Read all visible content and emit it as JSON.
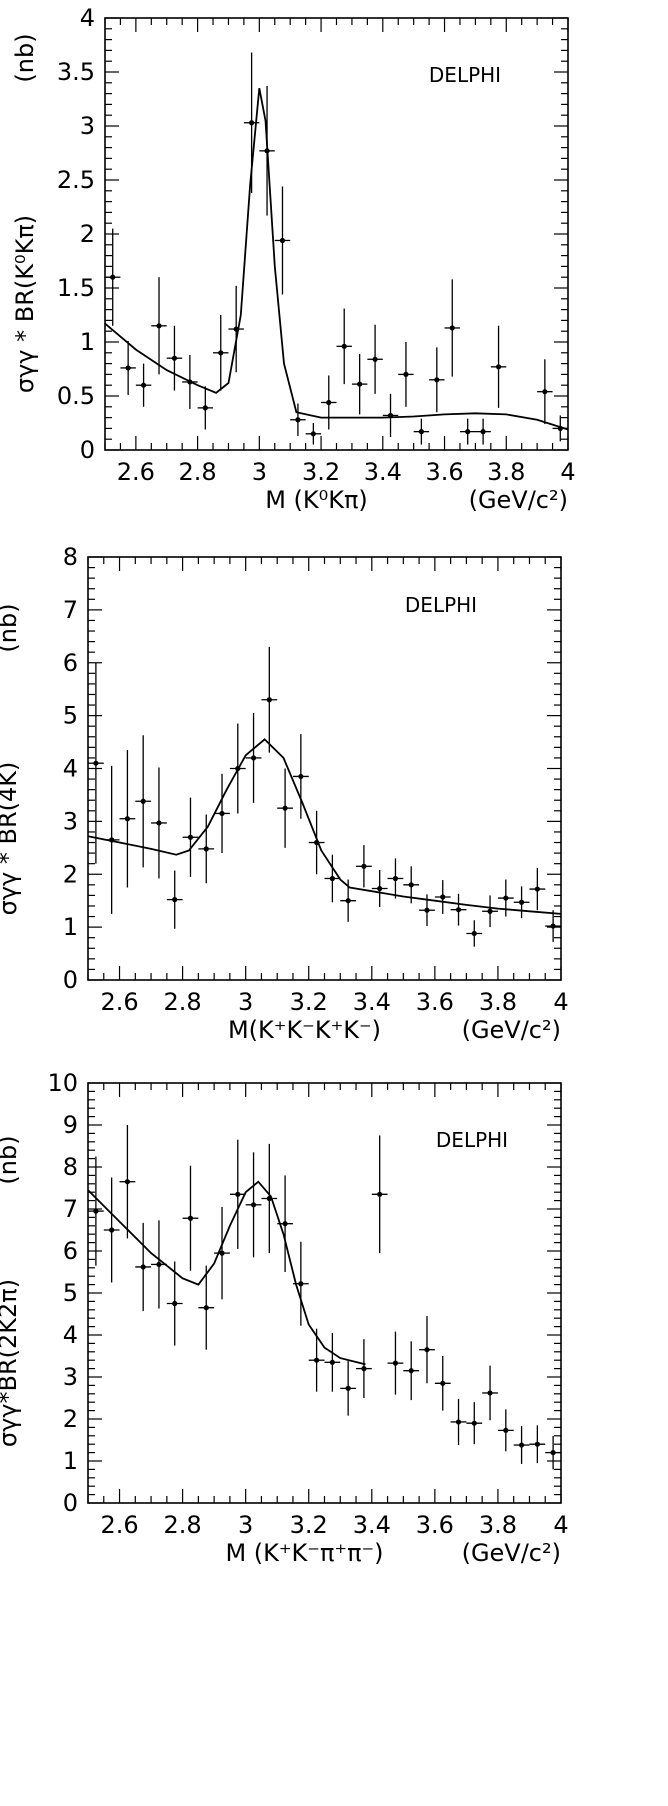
{
  "chart_data": [
    {
      "type": "scatter",
      "tag": "DELPHI",
      "ylabel_text": "σγγ * BR(K⁰Kπ)",
      "y_unit": "(nb)",
      "xlabel": "M (K⁰Kπ)",
      "x_unit": "(GeV/c²)",
      "xlim": [
        2.5,
        4.0
      ],
      "ylim": [
        0,
        4
      ],
      "xticks": [
        2.6,
        2.8,
        3.0,
        3.2,
        3.4,
        3.6,
        3.8,
        4.0
      ],
      "xtick_labels": [
        "2.6",
        "2.8",
        "3",
        "3.2",
        "3.4",
        "3.6",
        "3.8",
        "4"
      ],
      "yticks": [
        0,
        0.5,
        1,
        1.5,
        2,
        2.5,
        3,
        3.5,
        4
      ],
      "ytick_labels": [
        "0",
        "0.5",
        "1",
        "1.5",
        "2",
        "2.5",
        "3",
        "3.5",
        "4"
      ],
      "points": [
        {
          "x": 2.525,
          "y": 1.6,
          "err": 0.45
        },
        {
          "x": 2.575,
          "y": 0.76,
          "err": 0.25
        },
        {
          "x": 2.625,
          "y": 0.6,
          "err": 0.2
        },
        {
          "x": 2.675,
          "y": 1.15,
          "err": 0.45
        },
        {
          "x": 2.725,
          "y": 0.85,
          "err": 0.3
        },
        {
          "x": 2.775,
          "y": 0.63,
          "err": 0.25
        },
        {
          "x": 2.825,
          "y": 0.39,
          "err": 0.2
        },
        {
          "x": 2.875,
          "y": 0.9,
          "err": 0.35
        },
        {
          "x": 2.925,
          "y": 1.12,
          "err": 0.4
        },
        {
          "x": 2.975,
          "y": 3.03,
          "err": 0.65
        },
        {
          "x": 3.025,
          "y": 2.77,
          "err": 0.6
        },
        {
          "x": 3.075,
          "y": 1.94,
          "err": 0.5
        },
        {
          "x": 3.125,
          "y": 0.28,
          "err": 0.15
        },
        {
          "x": 3.175,
          "y": 0.15,
          "err": 0.1
        },
        {
          "x": 3.225,
          "y": 0.44,
          "err": 0.25
        },
        {
          "x": 3.275,
          "y": 0.96,
          "err": 0.35
        },
        {
          "x": 3.325,
          "y": 0.61,
          "err": 0.28
        },
        {
          "x": 3.375,
          "y": 0.84,
          "err": 0.32
        },
        {
          "x": 3.425,
          "y": 0.32,
          "err": 0.2
        },
        {
          "x": 3.475,
          "y": 0.7,
          "err": 0.3
        },
        {
          "x": 3.525,
          "y": 0.17,
          "err": 0.12
        },
        {
          "x": 3.575,
          "y": 0.65,
          "err": 0.3
        },
        {
          "x": 3.625,
          "y": 1.13,
          "err": 0.45
        },
        {
          "x": 3.675,
          "y": 0.17,
          "err": 0.12
        },
        {
          "x": 3.725,
          "y": 0.17,
          "err": 0.12
        },
        {
          "x": 3.775,
          "y": 0.77,
          "err": 0.38
        },
        {
          "x": 3.925,
          "y": 0.54,
          "err": 0.3
        },
        {
          "x": 3.975,
          "y": 0.2,
          "err": 0.12
        }
      ],
      "fit": [
        [
          2.5,
          1.17
        ],
        [
          2.6,
          0.93
        ],
        [
          2.7,
          0.74
        ],
        [
          2.8,
          0.6
        ],
        [
          2.86,
          0.53
        ],
        [
          2.9,
          0.62
        ],
        [
          2.94,
          1.25
        ],
        [
          2.97,
          2.45
        ],
        [
          3.0,
          3.35
        ],
        [
          3.02,
          3.05
        ],
        [
          3.05,
          1.7
        ],
        [
          3.08,
          0.8
        ],
        [
          3.12,
          0.35
        ],
        [
          3.2,
          0.3
        ],
        [
          3.3,
          0.3
        ],
        [
          3.4,
          0.3
        ],
        [
          3.5,
          0.31
        ],
        [
          3.6,
          0.33
        ],
        [
          3.7,
          0.34
        ],
        [
          3.8,
          0.33
        ],
        [
          3.9,
          0.28
        ],
        [
          4.0,
          0.19
        ]
      ]
    },
    {
      "type": "scatter",
      "tag": "DELPHI",
      "ylabel_text": "σγγ * BR(4K)",
      "y_unit": "(nb)",
      "xlabel": "M(K⁺K⁻K⁺K⁻)",
      "x_unit": "(GeV/c²)",
      "xlim": [
        2.5,
        4.0
      ],
      "ylim": [
        0,
        8
      ],
      "xticks": [
        2.6,
        2.8,
        3.0,
        3.2,
        3.4,
        3.6,
        3.8,
        4.0
      ],
      "xtick_labels": [
        "2.6",
        "2.8",
        "3",
        "3.2",
        "3.4",
        "3.6",
        "3.8",
        "4"
      ],
      "yticks": [
        0,
        1,
        2,
        3,
        4,
        5,
        6,
        7,
        8
      ],
      "ytick_labels": [
        "0",
        "1",
        "2",
        "3",
        "4",
        "5",
        "6",
        "7",
        "8"
      ],
      "points": [
        {
          "x": 2.525,
          "y": 4.1,
          "err": 1.9
        },
        {
          "x": 2.575,
          "y": 2.65,
          "err": 1.4
        },
        {
          "x": 2.625,
          "y": 3.05,
          "err": 1.3
        },
        {
          "x": 2.675,
          "y": 3.38,
          "err": 1.25
        },
        {
          "x": 2.725,
          "y": 2.97,
          "err": 1.05
        },
        {
          "x": 2.775,
          "y": 1.52,
          "err": 0.55
        },
        {
          "x": 2.825,
          "y": 2.7,
          "err": 0.75
        },
        {
          "x": 2.875,
          "y": 2.48,
          "err": 0.65
        },
        {
          "x": 2.925,
          "y": 3.15,
          "err": 0.75
        },
        {
          "x": 2.975,
          "y": 4.0,
          "err": 0.85
        },
        {
          "x": 3.025,
          "y": 4.2,
          "err": 0.85
        },
        {
          "x": 3.075,
          "y": 5.3,
          "err": 1.0
        },
        {
          "x": 3.125,
          "y": 3.25,
          "err": 0.75
        },
        {
          "x": 3.175,
          "y": 3.85,
          "err": 0.8
        },
        {
          "x": 3.225,
          "y": 2.6,
          "err": 0.6
        },
        {
          "x": 3.275,
          "y": 1.92,
          "err": 0.45
        },
        {
          "x": 3.325,
          "y": 1.5,
          "err": 0.4
        },
        {
          "x": 3.375,
          "y": 2.15,
          "err": 0.4
        },
        {
          "x": 3.425,
          "y": 1.73,
          "err": 0.35
        },
        {
          "x": 3.475,
          "y": 1.92,
          "err": 0.38
        },
        {
          "x": 3.525,
          "y": 1.8,
          "err": 0.35
        },
        {
          "x": 3.575,
          "y": 1.32,
          "err": 0.3
        },
        {
          "x": 3.625,
          "y": 1.57,
          "err": 0.32
        },
        {
          "x": 3.675,
          "y": 1.33,
          "err": 0.3
        },
        {
          "x": 3.725,
          "y": 0.88,
          "err": 0.25
        },
        {
          "x": 3.775,
          "y": 1.3,
          "err": 0.3
        },
        {
          "x": 3.825,
          "y": 1.55,
          "err": 0.35
        },
        {
          "x": 3.875,
          "y": 1.47,
          "err": 0.3
        },
        {
          "x": 3.925,
          "y": 1.72,
          "err": 0.4
        },
        {
          "x": 3.975,
          "y": 1.02,
          "err": 0.3
        }
      ],
      "fit": [
        [
          2.5,
          2.72
        ],
        [
          2.6,
          2.6
        ],
        [
          2.7,
          2.48
        ],
        [
          2.78,
          2.37
        ],
        [
          2.82,
          2.45
        ],
        [
          2.88,
          2.9
        ],
        [
          2.94,
          3.6
        ],
        [
          3.0,
          4.25
        ],
        [
          3.06,
          4.55
        ],
        [
          3.12,
          4.2
        ],
        [
          3.18,
          3.35
        ],
        [
          3.24,
          2.45
        ],
        [
          3.3,
          1.9
        ],
        [
          3.33,
          1.75
        ],
        [
          3.4,
          1.68
        ],
        [
          3.5,
          1.58
        ],
        [
          3.6,
          1.5
        ],
        [
          3.7,
          1.42
        ],
        [
          3.8,
          1.35
        ],
        [
          3.9,
          1.3
        ],
        [
          4.0,
          1.25
        ]
      ]
    },
    {
      "type": "scatter",
      "tag": "DELPHI",
      "ylabel_text": "σγγ*BR(2K2π)",
      "y_unit": "(nb)",
      "xlabel": "M (K⁺K⁻π⁺π⁻)",
      "x_unit": "(GeV/c²)",
      "xlim": [
        2.5,
        4.0
      ],
      "ylim": [
        0,
        10
      ],
      "xticks": [
        2.6,
        2.8,
        3.0,
        3.2,
        3.4,
        3.6,
        3.8,
        4.0
      ],
      "xtick_labels": [
        "2.6",
        "2.8",
        "3",
        "3.2",
        "3.4",
        "3.6",
        "3.8",
        "4"
      ],
      "yticks": [
        0,
        1,
        2,
        3,
        4,
        5,
        6,
        7,
        8,
        9,
        10
      ],
      "ytick_labels": [
        "0",
        "1",
        "2",
        "3",
        "4",
        "5",
        "6",
        "7",
        "8",
        "9",
        "10"
      ],
      "points": [
        {
          "x": 2.525,
          "y": 6.95,
          "err": 1.3
        },
        {
          "x": 2.575,
          "y": 6.5,
          "err": 1.25
        },
        {
          "x": 2.625,
          "y": 7.65,
          "err": 1.35
        },
        {
          "x": 2.675,
          "y": 5.62,
          "err": 1.05
        },
        {
          "x": 2.725,
          "y": 5.68,
          "err": 1.05
        },
        {
          "x": 2.775,
          "y": 4.75,
          "err": 1.0
        },
        {
          "x": 2.825,
          "y": 6.78,
          "err": 1.25
        },
        {
          "x": 2.875,
          "y": 4.65,
          "err": 1.0
        },
        {
          "x": 2.925,
          "y": 5.95,
          "err": 1.1
        },
        {
          "x": 2.975,
          "y": 7.35,
          "err": 1.3
        },
        {
          "x": 3.025,
          "y": 7.1,
          "err": 1.25
        },
        {
          "x": 3.075,
          "y": 7.25,
          "err": 1.3
        },
        {
          "x": 3.125,
          "y": 6.65,
          "err": 1.15
        },
        {
          "x": 3.175,
          "y": 5.22,
          "err": 1.0
        },
        {
          "x": 3.225,
          "y": 3.4,
          "err": 0.75
        },
        {
          "x": 3.275,
          "y": 3.35,
          "err": 0.7
        },
        {
          "x": 3.325,
          "y": 2.73,
          "err": 0.65
        },
        {
          "x": 3.375,
          "y": 3.2,
          "err": 0.7
        },
        {
          "x": 3.425,
          "y": 7.35,
          "err": 1.4
        },
        {
          "x": 3.475,
          "y": 3.33,
          "err": 0.75
        },
        {
          "x": 3.525,
          "y": 3.15,
          "err": 0.7
        },
        {
          "x": 3.575,
          "y": 3.65,
          "err": 0.8
        },
        {
          "x": 3.625,
          "y": 2.85,
          "err": 0.65
        },
        {
          "x": 3.675,
          "y": 1.93,
          "err": 0.55
        },
        {
          "x": 3.725,
          "y": 1.9,
          "err": 0.5
        },
        {
          "x": 3.775,
          "y": 2.62,
          "err": 0.65
        },
        {
          "x": 3.825,
          "y": 1.73,
          "err": 0.5
        },
        {
          "x": 3.875,
          "y": 1.38,
          "err": 0.45
        },
        {
          "x": 3.925,
          "y": 1.4,
          "err": 0.45
        },
        {
          "x": 3.975,
          "y": 1.2,
          "err": 0.4
        }
      ],
      "fit": [
        [
          2.5,
          7.45
        ],
        [
          2.6,
          6.7
        ],
        [
          2.7,
          5.95
        ],
        [
          2.8,
          5.35
        ],
        [
          2.85,
          5.2
        ],
        [
          2.9,
          5.7
        ],
        [
          2.95,
          6.6
        ],
        [
          3.0,
          7.4
        ],
        [
          3.04,
          7.65
        ],
        [
          3.08,
          7.3
        ],
        [
          3.12,
          6.4
        ],
        [
          3.16,
          5.2
        ],
        [
          3.2,
          4.25
        ],
        [
          3.25,
          3.7
        ],
        [
          3.3,
          3.45
        ],
        [
          3.38,
          3.3
        ]
      ]
    }
  ]
}
